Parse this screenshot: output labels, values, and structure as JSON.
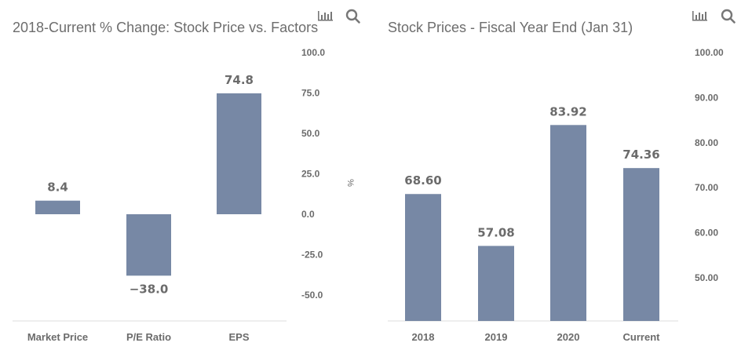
{
  "colors": {
    "bar": "#7788a5",
    "text": "#6b6b6b",
    "axis": "#dddddd"
  },
  "icons": {
    "chart_toggle": "bar-chart-icon",
    "zoom": "search-icon"
  },
  "chart_data": [
    {
      "type": "bar",
      "title": "2018-Current % Change: Stock Price vs. Factors",
      "xlabel": "",
      "ylabel": "%",
      "categories": [
        "Market Price",
        "P/E Ratio",
        "EPS"
      ],
      "values": [
        8.4,
        -38.0,
        74.8
      ],
      "data_labels": [
        "8.4",
        "−38.0",
        "74.8"
      ],
      "yticks": [
        "100.0",
        "75.0",
        "50.0",
        "25.0",
        "0.0",
        "-25.0",
        "-50.0"
      ],
      "ytick_values": [
        100,
        75,
        50,
        25,
        0,
        -25,
        -50
      ],
      "ylim": [
        -66,
        100
      ],
      "y_axis_side": "right",
      "grid": false
    },
    {
      "type": "bar",
      "title": "Stock Prices - Fiscal Year End (Jan 31)",
      "xlabel": "",
      "ylabel": "",
      "categories": [
        "2018",
        "2019",
        "2020",
        "Current"
      ],
      "values": [
        68.6,
        57.08,
        83.92,
        74.36
      ],
      "data_labels": [
        "68.60",
        "57.08",
        "83.92",
        "74.36"
      ],
      "yticks": [
        "100.00",
        "90.00",
        "80.00",
        "70.00",
        "60.00",
        "50.00"
      ],
      "ytick_values": [
        100,
        90,
        80,
        70,
        60,
        50
      ],
      "ylim": [
        40.4,
        100
      ],
      "y_axis_side": "right",
      "grid": false
    }
  ]
}
